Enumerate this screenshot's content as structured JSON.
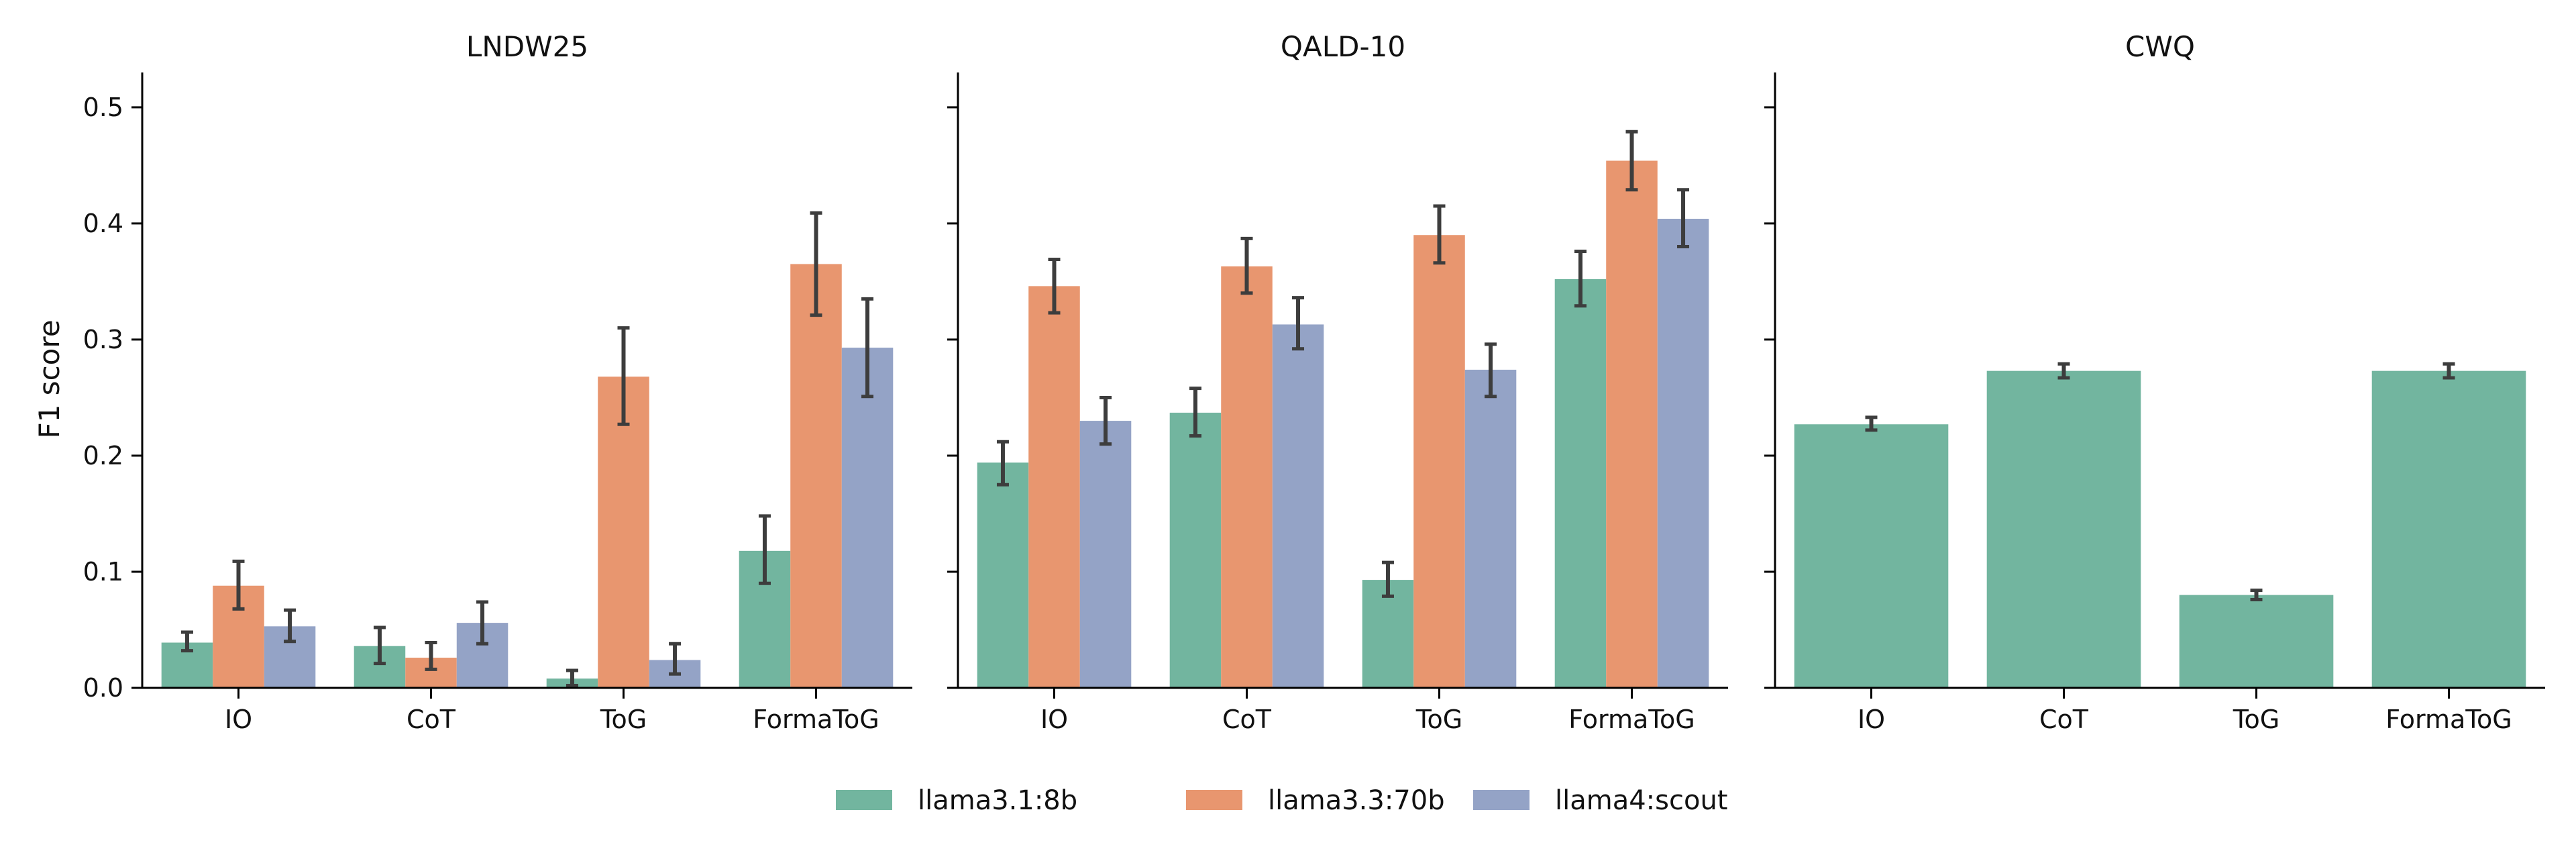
{
  "chart_data": {
    "type": "bar",
    "ylabel": "F1 score",
    "ylim": [
      0,
      0.53
    ],
    "yticks": [
      "0.0",
      "0.1",
      "0.2",
      "0.3",
      "0.4",
      "0.5"
    ],
    "categories": [
      "IO",
      "CoT",
      "ToG",
      "FormaToG"
    ],
    "grid": false,
    "legend_position": "bottom-center",
    "colors": {
      "llama3.1:8b": "#72b59f",
      "llama3.3:70b": "#e8966f",
      "llama4:scout": "#94a3c6",
      "errorbar": "#3d3d3d"
    },
    "legend": [
      "llama3.1:8b",
      "llama3.3:70b",
      "llama4:scout"
    ],
    "panels": [
      {
        "title": "LNDW25",
        "series": [
          {
            "name": "llama3.1:8b",
            "values": [
              0.039,
              0.036,
              0.008,
              0.118
            ],
            "err_low": [
              0.032,
              0.021,
              0.002,
              0.09
            ],
            "err_high": [
              0.048,
              0.052,
              0.015,
              0.148
            ]
          },
          {
            "name": "llama3.3:70b",
            "values": [
              0.088,
              0.026,
              0.268,
              0.365
            ],
            "err_low": [
              0.068,
              0.016,
              0.227,
              0.321
            ],
            "err_high": [
              0.109,
              0.039,
              0.31,
              0.409
            ]
          },
          {
            "name": "llama4:scout",
            "values": [
              0.053,
              0.056,
              0.024,
              0.293
            ],
            "err_low": [
              0.04,
              0.038,
              0.012,
              0.251
            ],
            "err_high": [
              0.067,
              0.074,
              0.038,
              0.335
            ]
          }
        ]
      },
      {
        "title": "QALD-10",
        "series": [
          {
            "name": "llama3.1:8b",
            "values": [
              0.194,
              0.237,
              0.093,
              0.352
            ],
            "err_low": [
              0.175,
              0.217,
              0.079,
              0.329
            ],
            "err_high": [
              0.212,
              0.258,
              0.108,
              0.376
            ]
          },
          {
            "name": "llama3.3:70b",
            "values": [
              0.346,
              0.363,
              0.39,
              0.454
            ],
            "err_low": [
              0.323,
              0.34,
              0.366,
              0.429
            ],
            "err_high": [
              0.369,
              0.387,
              0.415,
              0.479
            ]
          },
          {
            "name": "llama4:scout",
            "values": [
              0.23,
              0.313,
              0.274,
              0.404
            ],
            "err_low": [
              0.21,
              0.292,
              0.251,
              0.38
            ],
            "err_high": [
              0.25,
              0.336,
              0.296,
              0.429
            ]
          }
        ]
      },
      {
        "title": "CWQ",
        "series": [
          {
            "name": "llama3.1:8b",
            "values": [
              0.227,
              0.273,
              0.08,
              0.273
            ],
            "err_low": [
              0.222,
              0.267,
              0.076,
              0.267
            ],
            "err_high": [
              0.233,
              0.279,
              0.084,
              0.279
            ]
          }
        ]
      }
    ]
  }
}
